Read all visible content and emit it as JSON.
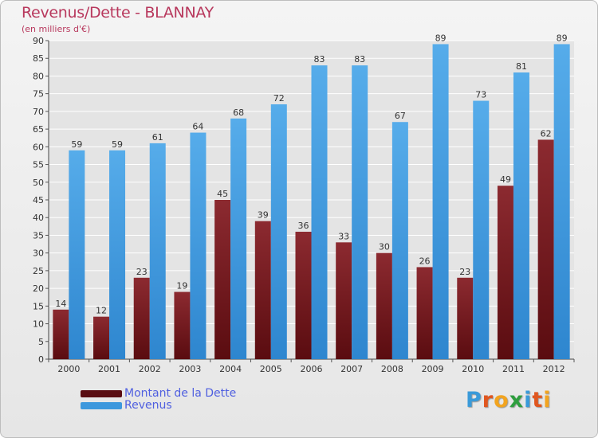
{
  "title": "Revenus/Dette - BLANNAY",
  "subtitle": "(en milliers d'€)",
  "logo": {
    "text": "Proxiti",
    "colors": [
      "#3a9ad9",
      "#e0561f",
      "#f2a41f",
      "#2e9e3e",
      "#3a9ad9",
      "#e0561f",
      "#f2a41f"
    ]
  },
  "colors": {
    "title": "#b8385d",
    "legend_text": "#4f5fe0",
    "grid": "#ffffff",
    "plot_bg": "#e4e4e4"
  },
  "chart_data": {
    "type": "bar",
    "title": "Revenus/Dette - BLANNAY",
    "subtitle": "(en milliers d'€)",
    "xlabel": "",
    "ylabel": "",
    "categories": [
      "2000",
      "2001",
      "2002",
      "2003",
      "2004",
      "2005",
      "2006",
      "2007",
      "2008",
      "2009",
      "2010",
      "2011",
      "2012"
    ],
    "series": [
      {
        "name": "Montant de la Dette",
        "color": "#7a1f24",
        "values": [
          14,
          12,
          23,
          19,
          45,
          39,
          36,
          33,
          30,
          26,
          23,
          49,
          62
        ]
      },
      {
        "name": "Revenus",
        "color": "#4aa3e2",
        "values": [
          59,
          59,
          61,
          64,
          68,
          72,
          83,
          83,
          67,
          89,
          73,
          81,
          89
        ]
      }
    ],
    "ylim": [
      0,
      90
    ],
    "yticks": [
      0,
      5,
      10,
      15,
      20,
      25,
      30,
      35,
      40,
      45,
      50,
      55,
      60,
      65,
      70,
      75,
      80,
      85,
      90
    ],
    "grid": true,
    "legend_position": "bottom-left",
    "data_labels": true
  }
}
